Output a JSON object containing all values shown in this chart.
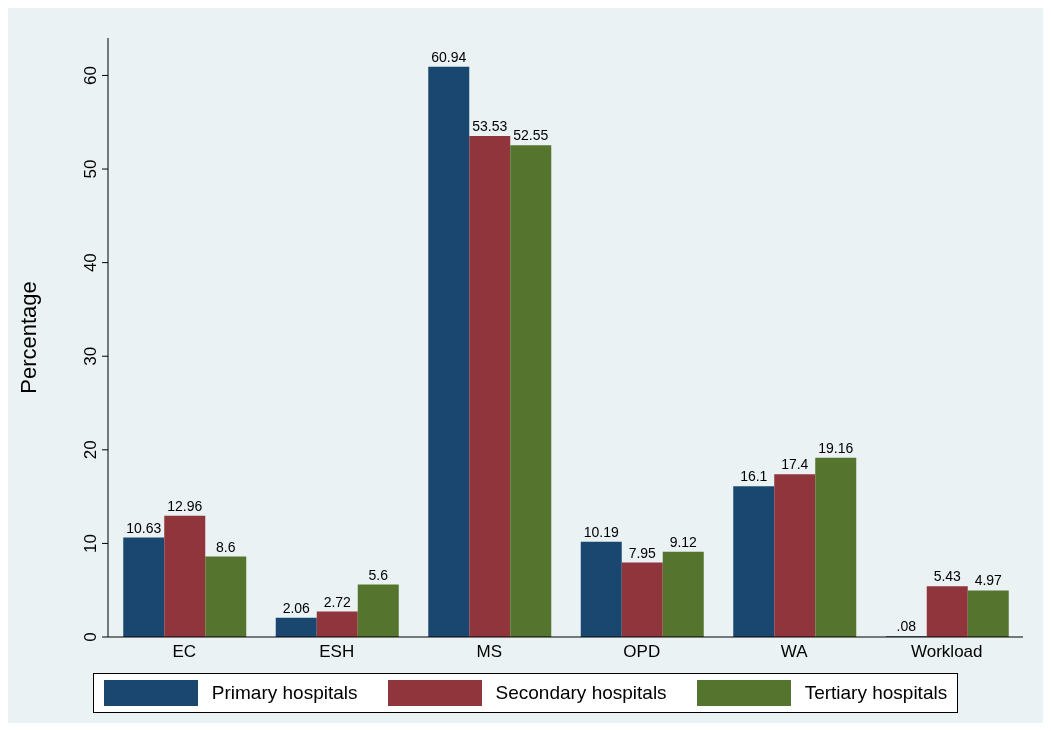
{
  "chart_data": {
    "type": "bar",
    "ylabel": "Percentage",
    "categories": [
      "EC",
      "ESH",
      "MS",
      "OPD",
      "WA",
      "Workload"
    ],
    "series": [
      {
        "name": "Primary hospitals",
        "color": "#1a476f",
        "values": [
          10.63,
          2.06,
          60.94,
          10.19,
          16.1,
          0.08
        ],
        "value_labels": [
          "10.63",
          "2.06",
          "60.94",
          "10.19",
          "16.1",
          ".08"
        ]
      },
      {
        "name": "Secondary hospitals",
        "color": "#90353b",
        "values": [
          12.96,
          2.72,
          53.53,
          7.95,
          17.4,
          5.43
        ],
        "value_labels": [
          "12.96",
          "2.72",
          "53.53",
          "7.95",
          "17.4",
          "5.43"
        ]
      },
      {
        "name": "Tertiary hospitals",
        "color": "#55752f",
        "values": [
          8.6,
          5.6,
          52.55,
          9.12,
          19.16,
          4.97
        ],
        "value_labels": [
          "8.6",
          "5.6",
          "52.55",
          "9.12",
          "19.16",
          "4.97"
        ]
      }
    ],
    "ylim": [
      0,
      64
    ],
    "yticks": [
      0,
      10,
      20,
      30,
      40,
      50,
      60
    ],
    "grid": false,
    "legend": "bottom"
  }
}
